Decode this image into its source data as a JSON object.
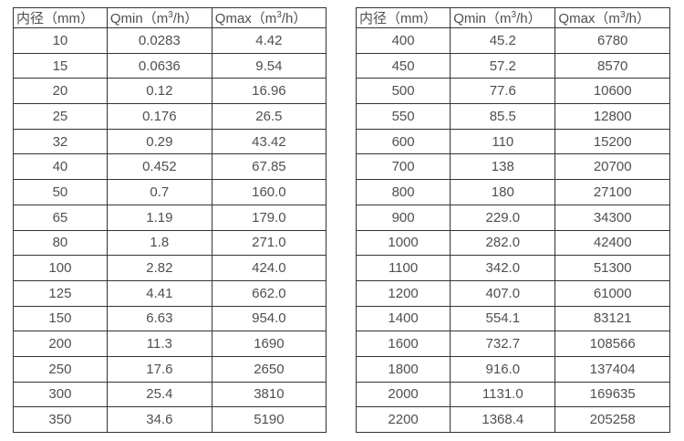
{
  "page": {
    "background_color": "#ffffff",
    "border_color": "#333333",
    "text_color": "#4f4f4f"
  },
  "chart_data": [
    {
      "type": "table",
      "title": "",
      "columns": [
        "内径（mm）",
        "Qmin（m³/h）",
        "Qmax（m³/h）"
      ],
      "rows": [
        [
          "10",
          "0.0283",
          "4.42"
        ],
        [
          "15",
          "0.0636",
          "9.54"
        ],
        [
          "20",
          "0.12",
          "16.96"
        ],
        [
          "25",
          "0.176",
          "26.5"
        ],
        [
          "32",
          "0.29",
          "43.42"
        ],
        [
          "40",
          "0.452",
          "67.85"
        ],
        [
          "50",
          "0.7",
          "160.0"
        ],
        [
          "65",
          "1.19",
          "179.0"
        ],
        [
          "80",
          "1.8",
          "271.0"
        ],
        [
          "100",
          "2.82",
          "424.0"
        ],
        [
          "125",
          "4.41",
          "662.0"
        ],
        [
          "150",
          "6.63",
          "954.0"
        ],
        [
          "200",
          "11.3",
          "1690"
        ],
        [
          "250",
          "17.6",
          "2650"
        ],
        [
          "300",
          "25.4",
          "3810"
        ],
        [
          "350",
          "34.6",
          "5190"
        ]
      ]
    },
    {
      "type": "table",
      "title": "",
      "columns": [
        "内径（mm）",
        "Qmin（m³/h）",
        "Qmax（m³/h）"
      ],
      "rows": [
        [
          "400",
          "45.2",
          "6780"
        ],
        [
          "450",
          "57.2",
          "8570"
        ],
        [
          "500",
          "77.6",
          "10600"
        ],
        [
          "550",
          "85.5",
          "12800"
        ],
        [
          "600",
          "110",
          "15200"
        ],
        [
          "700",
          "138",
          "20700"
        ],
        [
          "800",
          "180",
          "27100"
        ],
        [
          "900",
          "229.0",
          "34300"
        ],
        [
          "1000",
          "282.0",
          "42400"
        ],
        [
          "1100",
          "342.0",
          "51300"
        ],
        [
          "1200",
          "407.0",
          "61000"
        ],
        [
          "1400",
          "554.1",
          "83121"
        ],
        [
          "1600",
          "732.7",
          "108566"
        ],
        [
          "1800",
          "916.0",
          "137404"
        ],
        [
          "2000",
          "1131.0",
          "169635"
        ],
        [
          "2200",
          "1368.4",
          "205258"
        ]
      ]
    }
  ]
}
